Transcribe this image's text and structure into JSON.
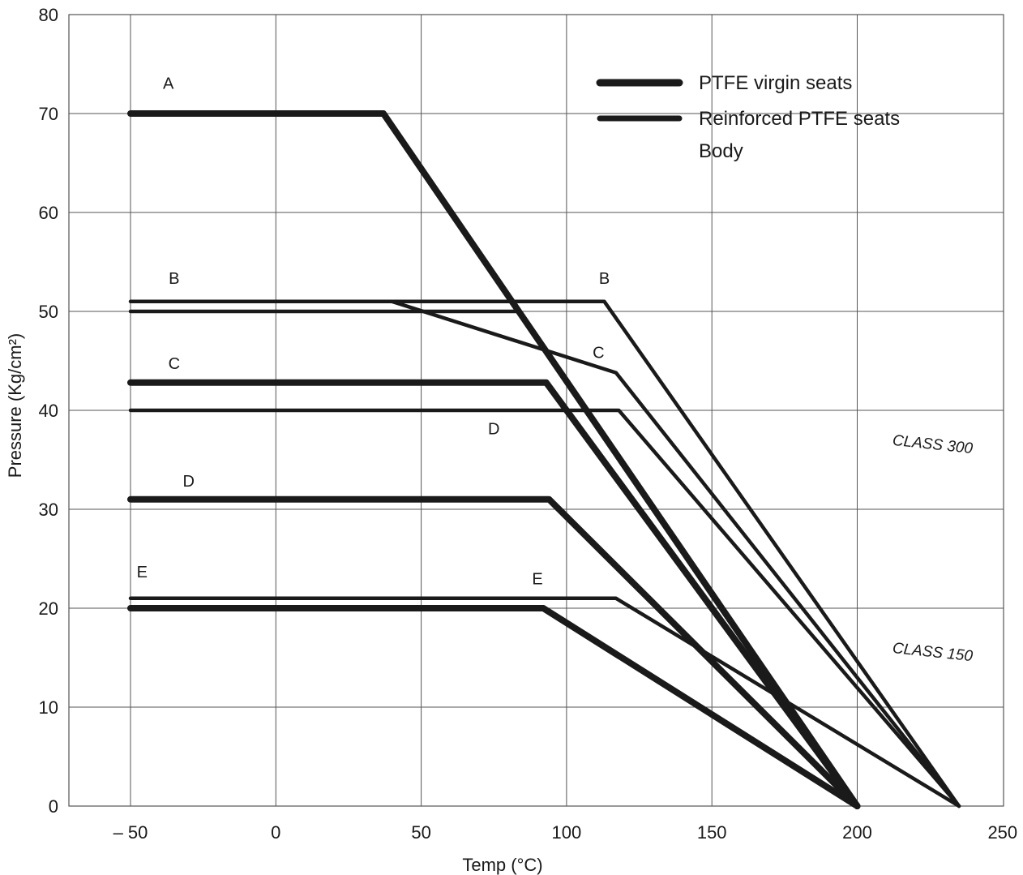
{
  "chart_data": {
    "type": "line",
    "xlabel": "Temp (°C)",
    "ylabel": "Pressure (Kg/cm²)",
    "xlim": [
      -50,
      250
    ],
    "ylim": [
      0,
      80
    ],
    "x_ticks": [
      -50,
      0,
      50,
      100,
      150,
      200,
      250
    ],
    "x_tick_labels": [
      "– 50",
      "0",
      "50",
      "100",
      "150",
      "200",
      "250"
    ],
    "y_ticks": [
      0,
      10,
      20,
      30,
      40,
      50,
      60,
      70,
      80
    ],
    "y_tick_labels": [
      "0",
      "10",
      "20",
      "30",
      "40",
      "50",
      "60",
      "70",
      "80"
    ],
    "grid": true,
    "legend_position": "top-right",
    "legend": [
      {
        "label": "PTFE virgin seats",
        "style": "thick"
      },
      {
        "label": "Reinforced PTFE seats",
        "style": "medium"
      },
      {
        "label": "Body",
        "style": "none"
      }
    ],
    "series": [
      {
        "label": "A",
        "style": "thick",
        "points": [
          [
            -50,
            70
          ],
          [
            37,
            70
          ],
          [
            200,
            0
          ]
        ]
      },
      {
        "label": "C",
        "style": "thick",
        "points": [
          [
            -50,
            42.8
          ],
          [
            93,
            42.8
          ],
          [
            200,
            0
          ]
        ]
      },
      {
        "label": "D",
        "style": "thick",
        "points": [
          [
            -50,
            31
          ],
          [
            94,
            31
          ],
          [
            200,
            0
          ]
        ]
      },
      {
        "label": "E",
        "style": "thick",
        "points": [
          [
            -50,
            20
          ],
          [
            92,
            20
          ],
          [
            200,
            0
          ]
        ]
      },
      {
        "label": "B",
        "style": "medium",
        "points": [
          [
            -50,
            50
          ],
          [
            84,
            50
          ]
        ]
      },
      {
        "label": "B",
        "style": "medium",
        "points": [
          [
            -50,
            51
          ],
          [
            113,
            51
          ],
          [
            235,
            0
          ]
        ]
      },
      {
        "label": "C",
        "style": "medium",
        "points": [
          [
            40,
            51
          ],
          [
            117,
            43.8
          ],
          [
            235,
            0
          ]
        ]
      },
      {
        "label": "D",
        "style": "medium",
        "points": [
          [
            -50,
            40
          ],
          [
            118,
            40
          ],
          [
            235,
            0
          ]
        ]
      },
      {
        "label": "E",
        "style": "medium",
        "points": [
          [
            -50,
            21
          ],
          [
            117,
            21
          ],
          [
            235,
            0
          ]
        ]
      }
    ],
    "curve_labels": [
      {
        "text": "A",
        "x": -37,
        "y": 72.5
      },
      {
        "text": "B",
        "x": -35,
        "y": 52.8
      },
      {
        "text": "B",
        "x": 113,
        "y": 52.8
      },
      {
        "text": "C",
        "x": -35,
        "y": 44.2
      },
      {
        "text": "C",
        "x": 111,
        "y": 45.3
      },
      {
        "text": "D",
        "x": -30,
        "y": 32.3
      },
      {
        "text": "D",
        "x": 75,
        "y": 37.6
      },
      {
        "text": "E",
        "x": -46,
        "y": 23.1
      },
      {
        "text": "E",
        "x": 90,
        "y": 22.4
      }
    ],
    "annotations": [
      {
        "text": "CLASS 300",
        "x": 212,
        "y": 36.5
      },
      {
        "text": "CLASS 150",
        "x": 212,
        "y": 15.5
      }
    ]
  }
}
